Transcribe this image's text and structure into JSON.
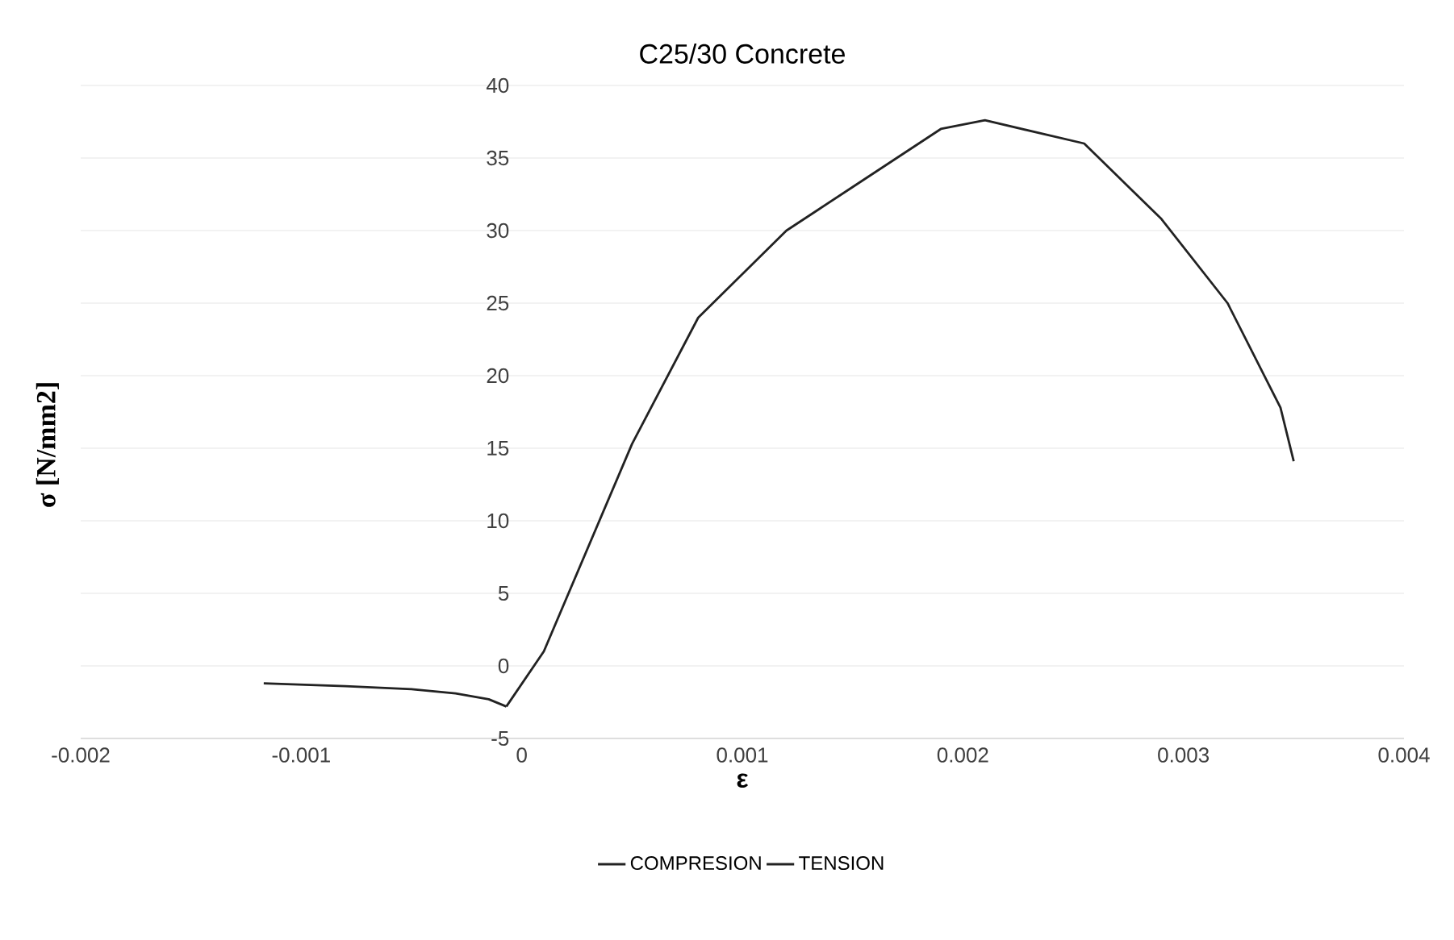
{
  "chart_data": {
    "type": "line",
    "title": "C25/30 Concrete",
    "xlabel": "ε",
    "ylabel": "σ [N/mm2]",
    "xlim": [
      -0.002,
      0.004
    ],
    "xticks": [
      -0.002,
      -0.001,
      0,
      0.001,
      0.002,
      0.003,
      0.004
    ],
    "ylim": [
      -5,
      40
    ],
    "yticks": [
      -5,
      0,
      5,
      10,
      15,
      20,
      25,
      30,
      35,
      40
    ],
    "grid": "y",
    "legend": "bottom",
    "marker": "none",
    "line_style": "solid",
    "series": [
      {
        "name": "COMPRESION",
        "color": "#222222",
        "x": [
          -7e-05,
          0.0001,
          0.0005,
          0.0008,
          0.0012,
          0.0015,
          0.0019,
          0.0021,
          0.00255,
          0.0029,
          0.0032,
          0.00344,
          0.0035
        ],
        "values": [
          -2.8,
          1,
          15.3,
          24,
          30,
          33,
          37,
          37.6,
          36,
          30.8,
          25,
          17.8,
          14.1
        ]
      },
      {
        "name": "TENSION",
        "color": "#222222",
        "x": [
          -0.00117,
          -0.0008,
          -0.0005,
          -0.0003,
          -0.00015,
          -7e-05
        ],
        "values": [
          -1.2,
          -1.4,
          -1.6,
          -1.9,
          -2.3,
          -2.8
        ]
      }
    ]
  }
}
